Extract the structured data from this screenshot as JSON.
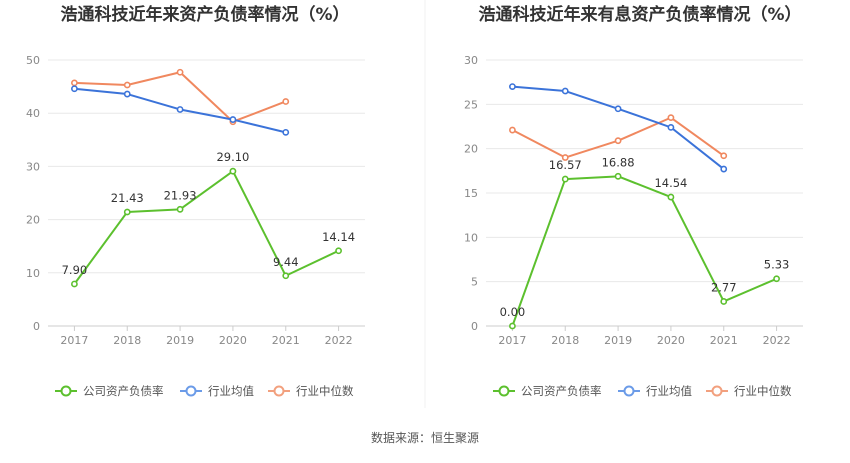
{
  "source": "数据来源：恒生聚源",
  "legend": [
    {
      "label": "公司资产负债率",
      "color": "#5cc02e"
    },
    {
      "label": "行业均值",
      "color": "#6b9be8"
    },
    {
      "label": "行业中位数",
      "color": "#f2a07e"
    }
  ],
  "chart_data": [
    {
      "type": "line",
      "title": "浩通科技近年来资产负债率情况（%）",
      "categories": [
        "2017",
        "2018",
        "2019",
        "2020",
        "2021",
        "2022"
      ],
      "ylim": [
        0,
        50
      ],
      "yticks": [
        0,
        10,
        20,
        30,
        40,
        50
      ],
      "grid": true,
      "legend_position": "bottom",
      "series": [
        {
          "name": "公司资产负债率",
          "color": "#5cc02e",
          "values": [
            7.9,
            21.43,
            21.93,
            29.1,
            9.44,
            14.14
          ],
          "labels": [
            "7.90",
            "21.43",
            "21.93",
            "29.10",
            "9.44",
            "14.14"
          ]
        },
        {
          "name": "行业均值",
          "color": "#3b73d9",
          "values": [
            44.6,
            43.6,
            40.7,
            38.8,
            36.4,
            null
          ]
        },
        {
          "name": "行业中位数",
          "color": "#f0885f",
          "values": [
            45.7,
            45.3,
            47.7,
            38.4,
            42.2,
            null
          ]
        }
      ]
    },
    {
      "type": "line",
      "title": "浩通科技近年来有息资产负债率情况（%）",
      "categories": [
        "2017",
        "2018",
        "2019",
        "2020",
        "2021",
        "2022"
      ],
      "ylim": [
        0,
        30
      ],
      "yticks": [
        0,
        5,
        10,
        15,
        20,
        25,
        30
      ],
      "grid": true,
      "legend_position": "bottom",
      "series": [
        {
          "name": "公司资产负债率",
          "color": "#5cc02e",
          "values": [
            0.0,
            16.57,
            16.88,
            14.54,
            2.77,
            5.33
          ],
          "labels": [
            "0.00",
            "16.57",
            "16.88",
            "14.54",
            "2.77",
            "5.33"
          ]
        },
        {
          "name": "行业均值",
          "color": "#3b73d9",
          "values": [
            27.0,
            26.5,
            24.5,
            22.4,
            17.7,
            null
          ]
        },
        {
          "name": "行业中位数",
          "color": "#f0885f",
          "values": [
            22.1,
            19.0,
            20.9,
            23.5,
            19.2,
            null
          ]
        }
      ]
    }
  ]
}
